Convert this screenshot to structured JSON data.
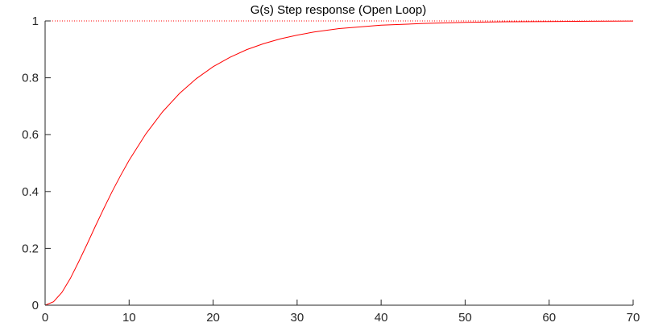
{
  "chart_data": {
    "type": "line",
    "title": "G(s) Step response (Open Loop)",
    "xlabel": "",
    "ylabel": "",
    "xlim": [
      0,
      70
    ],
    "ylim": [
      0,
      1
    ],
    "x_ticks": [
      "0",
      "10",
      "20",
      "30",
      "40",
      "50",
      "60",
      "70"
    ],
    "y_ticks": [
      "0",
      "0.2",
      "0.4",
      "0.6",
      "0.8",
      "1"
    ],
    "grid": false,
    "series": [
      {
        "name": "",
        "color": "#ff0000",
        "style": "solid",
        "x": [
          0,
          1,
          2,
          3,
          4,
          5,
          6,
          7,
          8,
          9,
          10,
          12,
          14,
          16,
          18,
          20,
          22,
          24,
          26,
          28,
          30,
          32,
          35,
          40,
          45,
          50,
          55,
          60,
          65,
          70
        ],
        "y": [
          0,
          0.012,
          0.045,
          0.094,
          0.153,
          0.215,
          0.279,
          0.341,
          0.401,
          0.457,
          0.51,
          0.603,
          0.681,
          0.745,
          0.797,
          0.839,
          0.872,
          0.899,
          0.92,
          0.937,
          0.95,
          0.961,
          0.973,
          0.985,
          0.991,
          0.995,
          0.997,
          0.998,
          0.999,
          0.9995
        ]
      },
      {
        "name": "",
        "color": "#ff0000",
        "style": "dotted",
        "x": [
          0,
          70
        ],
        "y": [
          1,
          1
        ]
      }
    ]
  }
}
